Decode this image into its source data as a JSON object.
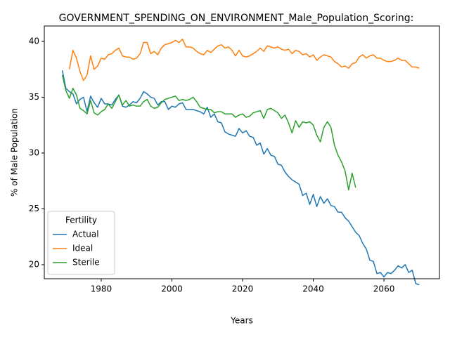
{
  "chart_data": {
    "type": "line",
    "title": "GOVERNMENT_SPENDING_ON_ENVIRONMENT_Male_Population_Scoring:",
    "xlabel": "Years",
    "ylabel": "% of Male Population",
    "legend_title": "Fertility",
    "legend_loc": "lower left",
    "xlim": [
      1963.9,
      2075.7
    ],
    "ylim": [
      18.74,
      41.38
    ],
    "xticks": [
      1980,
      2000,
      2020,
      2040,
      2060
    ],
    "yticks": [
      20,
      25,
      30,
      35,
      40
    ],
    "x": [
      1969,
      1970,
      1971,
      1972,
      1973,
      1974,
      1975,
      1976,
      1977,
      1978,
      1979,
      1980,
      1981,
      1982,
      1983,
      1984,
      1985,
      1986,
      1987,
      1988,
      1989,
      1990,
      1991,
      1992,
      1993,
      1994,
      1995,
      1996,
      1997,
      1998,
      1999,
      2000,
      2001,
      2002,
      2003,
      2004,
      2005,
      2006,
      2007,
      2008,
      2009,
      2010,
      2011,
      2012,
      2013,
      2014,
      2015,
      2016,
      2017,
      2018,
      2019,
      2020,
      2021,
      2022,
      2023,
      2024,
      2025,
      2026,
      2027,
      2028,
      2029,
      2030,
      2031,
      2032,
      2033,
      2034,
      2035,
      2036,
      2037,
      2038,
      2039,
      2040,
      2041,
      2042,
      2043,
      2044,
      2045,
      2046,
      2047,
      2048,
      2049,
      2050,
      2051,
      2052,
      2053,
      2054,
      2055,
      2056,
      2057,
      2058,
      2059,
      2060,
      2061,
      2062,
      2063,
      2064,
      2065,
      2066,
      2067,
      2068,
      2069,
      2070
    ],
    "series": [
      {
        "name": "Actual",
        "color": "#1f77b4",
        "values": [
          37.4,
          35.8,
          35.5,
          35.3,
          34.4,
          34.8,
          35.0,
          33.7,
          35.1,
          34.5,
          34.1,
          34.9,
          34.4,
          34.4,
          34.3,
          34.8,
          35.2,
          34.2,
          34.1,
          34.3,
          34.6,
          34.5,
          34.9,
          35.5,
          35.3,
          35.0,
          34.9,
          34.3,
          34.6,
          34.6,
          33.9,
          34.2,
          34.1,
          34.4,
          34.5,
          33.9,
          33.9,
          33.9,
          33.8,
          33.7,
          33.5,
          34.1,
          33.2,
          33.5,
          32.8,
          32.7,
          31.9,
          31.7,
          31.6,
          31.5,
          32.2,
          31.8,
          32.0,
          31.5,
          31.4,
          30.7,
          30.9,
          29.9,
          30.4,
          29.8,
          29.7,
          29.0,
          28.9,
          28.3,
          27.9,
          27.6,
          27.4,
          27.2,
          26.2,
          26.4,
          25.4,
          26.3,
          25.2,
          26.1,
          25.5,
          25.9,
          25.3,
          25.2,
          24.7,
          24.7,
          24.2,
          23.9,
          23.4,
          22.9,
          22.6,
          21.9,
          21.4,
          20.4,
          20.3,
          19.2,
          19.3,
          18.9,
          19.3,
          19.2,
          19.5,
          19.9,
          19.7,
          20.0,
          19.3,
          19.5,
          18.3,
          18.2
        ]
      },
      {
        "name": "Ideal",
        "color": "#ff7f0e",
        "values": [
          null,
          null,
          37.5,
          39.2,
          38.5,
          37.3,
          36.5,
          37.0,
          38.7,
          37.5,
          37.8,
          38.5,
          38.4,
          38.8,
          38.9,
          39.2,
          39.4,
          38.7,
          38.6,
          38.6,
          38.4,
          38.5,
          38.9,
          39.9,
          39.9,
          38.9,
          39.1,
          38.8,
          39.4,
          39.7,
          39.8,
          39.9,
          40.1,
          39.9,
          40.2,
          39.5,
          39.5,
          39.4,
          39.1,
          38.9,
          38.8,
          39.2,
          39.0,
          39.3,
          39.6,
          39.7,
          39.4,
          39.5,
          39.2,
          38.7,
          39.2,
          38.7,
          38.6,
          38.7,
          38.9,
          39.1,
          39.4,
          39.1,
          39.6,
          39.5,
          39.4,
          39.5,
          39.3,
          39.2,
          39.3,
          38.9,
          39.2,
          39.1,
          38.8,
          38.9,
          38.6,
          38.8,
          38.3,
          38.6,
          38.8,
          38.7,
          38.6,
          38.2,
          38.0,
          37.7,
          37.8,
          37.6,
          38.0,
          38.1,
          38.6,
          38.8,
          38.5,
          38.7,
          38.8,
          38.5,
          38.5,
          38.3,
          38.2,
          38.2,
          38.3,
          38.5,
          38.3,
          38.3,
          38.0,
          37.7,
          37.7,
          37.6
        ]
      },
      {
        "name": "Sterile",
        "color": "#2ca02c",
        "values": [
          37.0,
          35.6,
          34.9,
          35.8,
          35.2,
          34.0,
          33.8,
          33.5,
          34.7,
          33.6,
          33.4,
          33.7,
          33.9,
          34.4,
          34.0,
          34.6,
          35.2,
          34.3,
          34.7,
          34.2,
          34.3,
          34.2,
          34.2,
          34.6,
          34.8,
          34.2,
          34.0,
          34.1,
          34.5,
          34.8,
          34.9,
          35.0,
          35.1,
          34.7,
          34.8,
          34.7,
          34.8,
          35.0,
          34.6,
          34.1,
          34.0,
          33.9,
          33.9,
          33.6,
          33.7,
          33.7,
          33.5,
          33.5,
          33.5,
          33.2,
          33.4,
          33.5,
          33.2,
          33.3,
          33.6,
          33.7,
          33.8,
          33.1,
          33.9,
          34.0,
          33.8,
          33.6,
          33.1,
          33.4,
          32.7,
          31.8,
          32.9,
          32.3,
          32.8,
          32.7,
          32.8,
          32.5,
          31.6,
          31.0,
          32.3,
          32.8,
          32.3,
          30.7,
          29.8,
          29.2,
          28.4,
          26.7,
          28.2,
          26.9,
          null,
          null,
          null,
          null,
          null,
          null,
          null,
          null,
          null,
          null,
          null,
          null,
          null,
          null,
          null,
          null,
          null,
          null
        ]
      }
    ]
  }
}
